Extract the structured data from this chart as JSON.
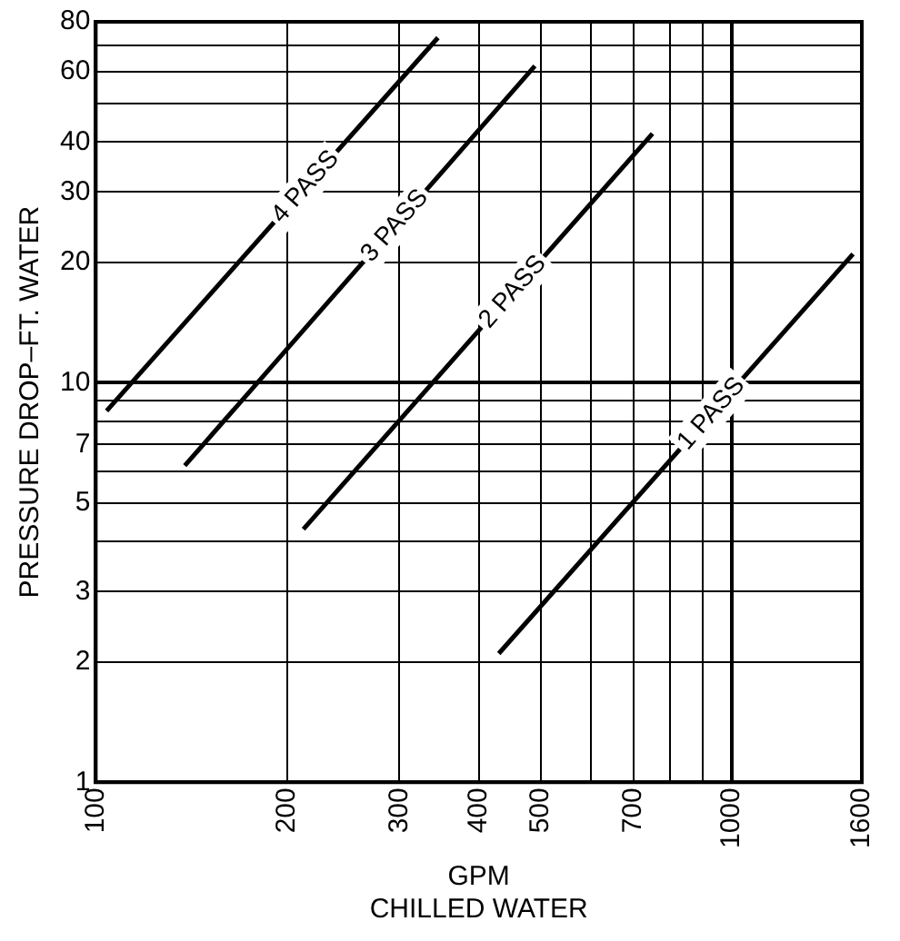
{
  "chart_data": {
    "type": "line",
    "xlabel": "GPM\nCHILLED WATER",
    "ylabel": "PRESSURE DROP–FT. WATER",
    "log": "xy",
    "grid": true,
    "legend": false,
    "marker": "none",
    "line_style": "solid",
    "xlim": [
      100,
      1600
    ],
    "xticks": [
      100,
      200,
      300,
      400,
      500,
      {
        "value": 600,
        "label": null
      },
      700,
      {
        "value": 800,
        "label": null
      },
      {
        "value": 900,
        "label": null
      },
      1000,
      1600
    ],
    "ylim": [
      1,
      80
    ],
    "yticks": [
      1,
      2,
      3,
      {
        "value": 4,
        "label": null
      },
      5,
      {
        "value": 6,
        "label": null
      },
      7,
      {
        "value": 8,
        "label": null
      },
      {
        "value": 9,
        "label": null
      },
      10,
      20,
      30,
      40,
      {
        "value": 50,
        "label": null
      },
      60,
      {
        "value": 70,
        "label": null
      },
      80
    ],
    "series": [
      {
        "name": "4 PASS",
        "color": "#000000",
        "x": [
          104,
          345
        ],
        "values": [
          8.5,
          73
        ]
      },
      {
        "name": "3 PASS",
        "color": "#000000",
        "x": [
          138,
          490
        ],
        "values": [
          6.2,
          62
        ]
      },
      {
        "name": "2 PASS",
        "color": "#000000",
        "x": [
          212,
          750
        ],
        "values": [
          4.3,
          42
        ]
      },
      {
        "name": "1 PASS",
        "color": "#000000",
        "x": [
          430,
          1550
        ],
        "values": [
          2.1,
          21
        ]
      }
    ]
  }
}
